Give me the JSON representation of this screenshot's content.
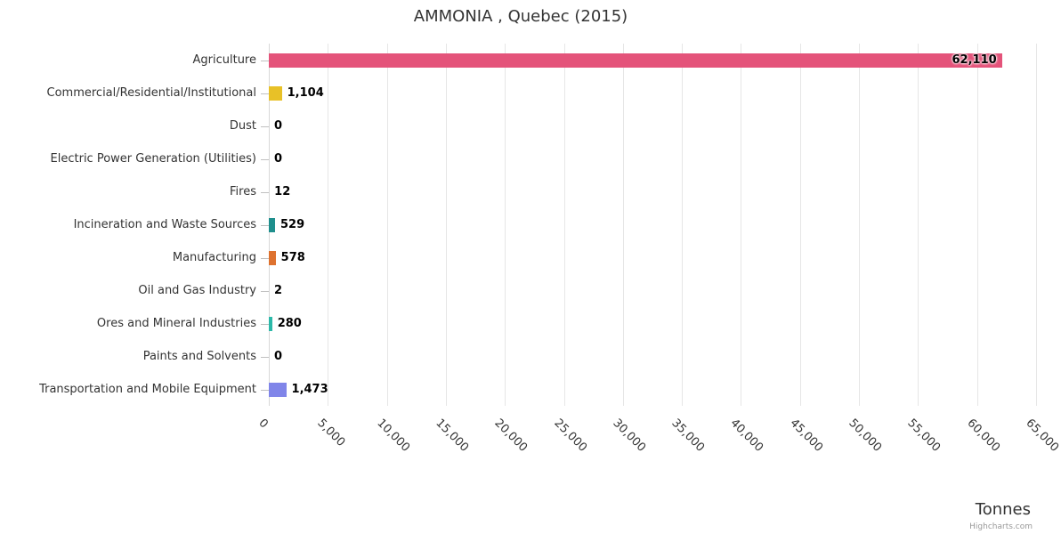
{
  "chart_data": {
    "type": "bar",
    "title": "AMMONIA , Quebec (2015)",
    "orientation": "horizontal",
    "categories": [
      "Agriculture",
      "Commercial/Residential/Institutional",
      "Dust",
      "Electric Power Generation (Utilities)",
      "Fires",
      "Incineration and Waste Sources",
      "Manufacturing",
      "Oil and Gas Industry",
      "Ores and Mineral Industries",
      "Paints and Solvents",
      "Transportation and Mobile Equipment"
    ],
    "values": [
      62110,
      1104,
      0,
      0,
      12,
      529,
      578,
      2,
      280,
      0,
      1473
    ],
    "value_labels": [
      "62,110",
      "1,104",
      "0",
      "0",
      "12",
      "529",
      "578",
      "2",
      "280",
      "0",
      "1,473"
    ],
    "bar_colors": [
      "#e4537a",
      "#e8c127",
      null,
      null,
      null,
      "#1f8f8d",
      "#de722f",
      null,
      "#2cb9a9",
      null,
      "#8085e9"
    ],
    "xlabel": "Tonnes",
    "ylabel": "",
    "xlim": [
      0,
      65000
    ],
    "x_ticks": [
      0,
      5000,
      10000,
      15000,
      20000,
      25000,
      30000,
      35000,
      40000,
      45000,
      50000,
      55000,
      60000,
      65000
    ],
    "x_tick_labels": [
      "0",
      "5,000",
      "10,000",
      "15,000",
      "20,000",
      "25,000",
      "30,000",
      "35,000",
      "40,000",
      "45,000",
      "50,000",
      "55,000",
      "60,000",
      "65,000"
    ],
    "grid": "vertical",
    "legend": "none",
    "credit": "Highcharts.com"
  }
}
